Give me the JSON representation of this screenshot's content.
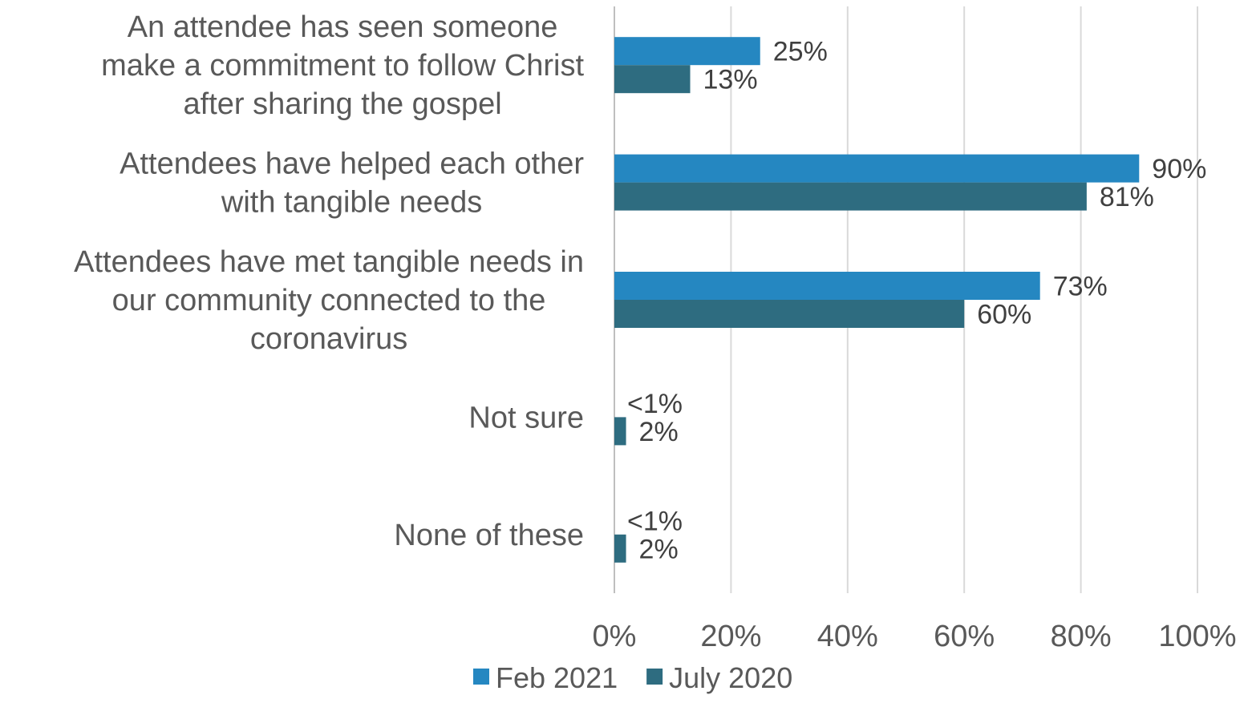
{
  "chart_data": {
    "type": "bar",
    "orientation": "horizontal",
    "categories": [
      [
        "An attendee has seen someone",
        "make a commitment to follow Christ",
        "after sharing the gospel"
      ],
      [
        "Attendees have helped each other",
        "with tangible needs"
      ],
      [
        "Attendees have met tangible needs in",
        "our community connected to the",
        "coronavirus"
      ],
      [
        "Not sure"
      ],
      [
        "None of these"
      ]
    ],
    "series": [
      {
        "name": "Feb 2021",
        "color": "#2587C1",
        "values": [
          25,
          90,
          73,
          0,
          0
        ],
        "labels": [
          "25%",
          "90%",
          "73%",
          "<1%",
          "<1%"
        ]
      },
      {
        "name": "July 2020",
        "color": "#2E6C80",
        "values": [
          13,
          81,
          60,
          2,
          2
        ],
        "labels": [
          "13%",
          "81%",
          "60%",
          "2%",
          "2%"
        ]
      }
    ],
    "xlim": [
      0,
      100
    ],
    "ticks": [
      "0%",
      "20%",
      "40%",
      "60%",
      "80%",
      "100%"
    ],
    "grid": true,
    "legend": "bottom"
  }
}
